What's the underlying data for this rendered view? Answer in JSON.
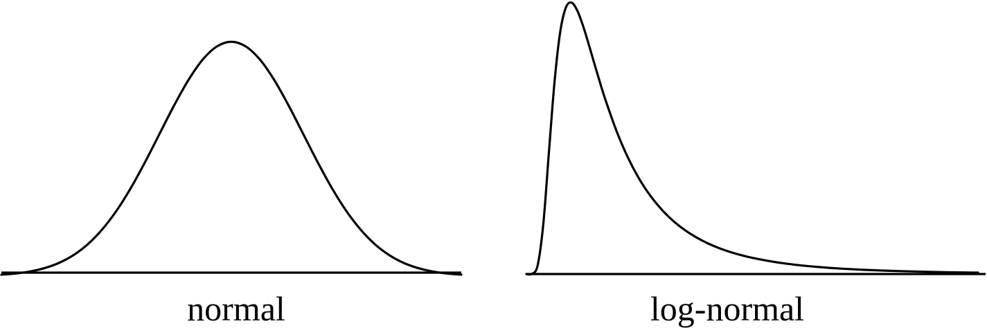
{
  "colors": {
    "stroke": "#000000",
    "text": "#000000",
    "background": "#ffffff"
  },
  "chart_data": [
    {
      "type": "line",
      "distribution": "normal",
      "caption": "normal",
      "x": [
        -3.2,
        -3.0,
        -2.8,
        -2.6,
        -2.4,
        -2.2,
        -2.0,
        -1.8,
        -1.6,
        -1.4,
        -1.2,
        -1.0,
        -0.8,
        -0.6,
        -0.4,
        -0.2,
        0.0,
        0.2,
        0.4,
        0.6,
        0.8,
        1.0,
        1.2,
        1.4,
        1.6,
        1.8,
        2.0,
        2.2,
        2.4,
        2.6,
        2.8,
        3.0,
        3.2
      ],
      "y": [
        0.0024,
        0.0044,
        0.0079,
        0.0136,
        0.0224,
        0.0355,
        0.054,
        0.079,
        0.1109,
        0.1497,
        0.1942,
        0.242,
        0.2897,
        0.3332,
        0.3683,
        0.391,
        0.3989,
        0.391,
        0.3683,
        0.3332,
        0.2897,
        0.242,
        0.1942,
        0.1497,
        0.1109,
        0.079,
        0.054,
        0.0355,
        0.0224,
        0.0136,
        0.0079,
        0.0044,
        0.0024
      ],
      "xlim": [
        -3.2,
        3.2
      ],
      "ylim": [
        0,
        0.47
      ],
      "axes": false,
      "grid": false
    },
    {
      "type": "line",
      "distribution": "log-normal",
      "caption": "log-normal",
      "x": [
        0.0,
        0.05,
        0.1,
        0.15,
        0.2,
        0.25,
        0.3,
        0.35,
        0.4,
        0.45,
        0.5,
        0.55,
        0.6,
        0.65,
        0.7,
        0.8,
        0.9,
        1.0,
        1.1,
        1.2,
        1.3,
        1.4,
        1.5,
        1.6,
        1.7,
        1.8,
        1.9,
        2.0,
        2.2,
        2.4,
        2.6,
        2.8,
        3.0,
        3.2,
        3.4,
        3.6,
        3.8,
        4.0
      ],
      "y": [
        0.0,
        0.0006,
        0.0282,
        0.1605,
        0.391,
        0.6165,
        0.7736,
        0.8507,
        0.8661,
        0.8413,
        0.7938,
        0.7356,
        0.6739,
        0.6133,
        0.556,
        0.4548,
        0.3711,
        0.3033,
        0.2488,
        0.2049,
        0.1696,
        0.1411,
        0.118,
        0.0991,
        0.0837,
        0.071,
        0.0605,
        0.0518,
        0.0384,
        0.0289,
        0.0221,
        0.017,
        0.0133,
        0.0105,
        0.0084,
        0.0067,
        0.0054,
        0.0044
      ],
      "xlim": [
        0,
        4.0
      ],
      "ylim": [
        0,
        0.87
      ],
      "axes": false,
      "grid": false
    }
  ]
}
